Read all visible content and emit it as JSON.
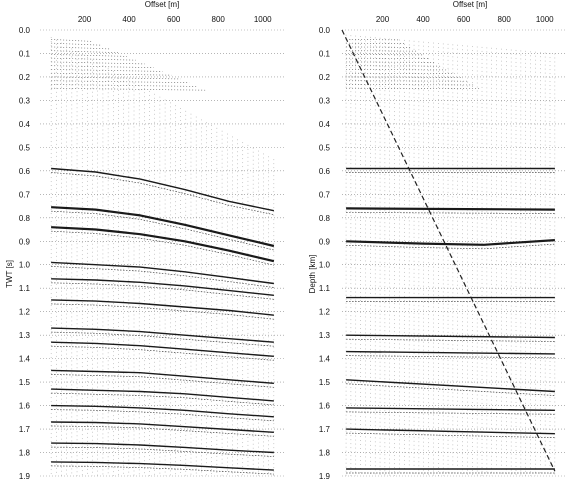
{
  "chart_data": [
    {
      "type": "line",
      "xlabel": "Offset [m]",
      "ylabel": "TWT [s]",
      "x_ticks": [
        200,
        400,
        600,
        800,
        1000
      ],
      "y_ticks": [
        "0.0",
        "0.1",
        "0.2",
        "0.3",
        "0.4",
        "0.5",
        "0.6",
        "0.7",
        "0.8",
        "0.9",
        "1.0",
        "1.1",
        "1.2",
        "1.3",
        "1.4",
        "1.5",
        "1.6",
        "1.7",
        "1.8",
        "1.9"
      ],
      "xlim": [
        0,
        1100
      ],
      "ylim": [
        0,
        1.9
      ],
      "y_inverted": true,
      "grid": "horizontal dotted",
      "x_axis_position": "top",
      "offset_range": [
        50,
        1050
      ],
      "series": [
        {
          "x": [
            50,
            250,
            450,
            650,
            850,
            1050
          ],
          "values": [
            0.59,
            0.605,
            0.635,
            0.68,
            0.73,
            0.77
          ]
        },
        {
          "x": [
            50,
            250,
            450,
            650,
            850,
            1050
          ],
          "values": [
            0.755,
            0.765,
            0.79,
            0.83,
            0.875,
            0.92
          ]
        },
        {
          "x": [
            50,
            250,
            450,
            650,
            850,
            1050
          ],
          "values": [
            0.84,
            0.85,
            0.87,
            0.9,
            0.94,
            0.985
          ]
        },
        {
          "x": [
            50,
            250,
            450,
            650,
            850,
            1050
          ],
          "values": [
            0.99,
            1.0,
            1.01,
            1.03,
            1.055,
            1.08
          ]
        },
        {
          "x": [
            50,
            250,
            450,
            650,
            850,
            1050
          ],
          "values": [
            1.06,
            1.065,
            1.075,
            1.09,
            1.11,
            1.13
          ]
        },
        {
          "x": [
            50,
            250,
            450,
            650,
            850,
            1050
          ],
          "values": [
            1.15,
            1.155,
            1.165,
            1.18,
            1.195,
            1.215
          ]
        },
        {
          "x": [
            50,
            250,
            450,
            650,
            850,
            1050
          ],
          "values": [
            1.27,
            1.275,
            1.285,
            1.3,
            1.315,
            1.33
          ]
        },
        {
          "x": [
            50,
            250,
            450,
            650,
            850,
            1050
          ],
          "values": [
            1.33,
            1.335,
            1.345,
            1.36,
            1.375,
            1.39
          ]
        },
        {
          "x": [
            50,
            250,
            450,
            650,
            850,
            1050
          ],
          "values": [
            1.45,
            1.455,
            1.46,
            1.475,
            1.49,
            1.505
          ]
        },
        {
          "x": [
            50,
            250,
            450,
            650,
            850,
            1050
          ],
          "values": [
            1.53,
            1.535,
            1.54,
            1.55,
            1.565,
            1.58
          ]
        },
        {
          "x": [
            50,
            250,
            450,
            650,
            850,
            1050
          ],
          "values": [
            1.6,
            1.603,
            1.61,
            1.62,
            1.635,
            1.648
          ]
        },
        {
          "x": [
            50,
            250,
            450,
            650,
            850,
            1050
          ],
          "values": [
            1.67,
            1.672,
            1.678,
            1.69,
            1.702,
            1.714
          ]
        },
        {
          "x": [
            50,
            250,
            450,
            650,
            850,
            1050
          ],
          "values": [
            1.76,
            1.762,
            1.768,
            1.778,
            1.79,
            1.8
          ]
        },
        {
          "x": [
            50,
            250,
            450,
            650,
            850,
            1050
          ],
          "values": [
            1.84,
            1.842,
            1.847,
            1.855,
            1.865,
            1.875
          ]
        }
      ]
    },
    {
      "type": "line",
      "xlabel": "Offset [m]",
      "ylabel": "Depth [km]",
      "x_ticks": [
        200,
        400,
        600,
        800,
        1000
      ],
      "y_ticks": [
        "0.0",
        "0.1",
        "0.2",
        "0.3",
        "0.4",
        "0.5",
        "0.6",
        "0.7",
        "0.8",
        "0.9",
        "1.0",
        "1.1",
        "1.2",
        "1.3",
        "1.4",
        "1.5",
        "1.6",
        "1.7",
        "1.8",
        "1.9"
      ],
      "xlim": [
        0,
        1100
      ],
      "ylim": [
        0,
        1.9
      ],
      "y_inverted": true,
      "grid": "horizontal dotted",
      "x_axis_position": "top",
      "offset_range": [
        20,
        1050
      ],
      "series": [
        {
          "x": [
            20,
            1050
          ],
          "values": [
            0.59,
            0.59
          ]
        },
        {
          "x": [
            20,
            1050
          ],
          "values": [
            0.76,
            0.765
          ]
        },
        {
          "x": [
            20,
            400,
            700,
            1050
          ],
          "values": [
            0.9,
            0.91,
            0.915,
            0.895
          ]
        },
        {
          "x": [
            20,
            1050
          ],
          "values": [
            1.14,
            1.14
          ]
        },
        {
          "x": [
            20,
            1050
          ],
          "values": [
            1.3,
            1.31
          ]
        },
        {
          "x": [
            20,
            1050
          ],
          "values": [
            1.37,
            1.38
          ]
        },
        {
          "x": [
            20,
            1050
          ],
          "values": [
            1.49,
            1.54
          ]
        },
        {
          "x": [
            20,
            1050
          ],
          "values": [
            1.61,
            1.62
          ]
        },
        {
          "x": [
            20,
            1050
          ],
          "values": [
            1.7,
            1.72
          ]
        },
        {
          "x": [
            20,
            1050
          ],
          "values": [
            1.87,
            1.87
          ]
        }
      ],
      "dashed_line": {
        "x": [
          0,
          1050
        ],
        "values": [
          0.0,
          1.88
        ]
      }
    }
  ]
}
